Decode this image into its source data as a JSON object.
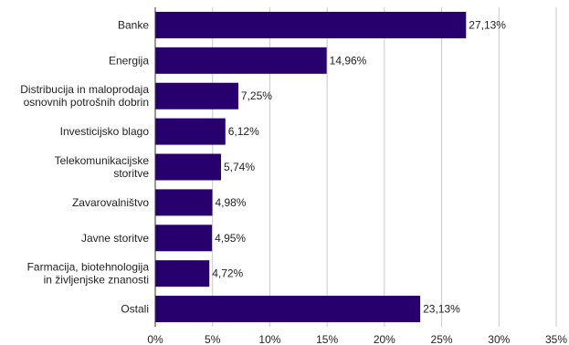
{
  "chart_data": {
    "type": "bar",
    "orientation": "horizontal",
    "title": "",
    "xlabel": "",
    "ylabel": "",
    "categories": [
      [
        "Banke"
      ],
      [
        "Energija"
      ],
      [
        "Distribucija in maloprodaja",
        "osnovnih potrošnih dobrin"
      ],
      [
        "Investicijsko blago"
      ],
      [
        "Telekomunikacijske",
        "storitve"
      ],
      [
        "Zavarovalništvo"
      ],
      [
        "Javne storitve"
      ],
      [
        "Farmacija, biotehnologija",
        "in življenjske znanosti"
      ],
      [
        "Ostali"
      ]
    ],
    "values": [
      27.13,
      14.96,
      7.25,
      6.12,
      5.74,
      4.98,
      4.95,
      4.72,
      23.13
    ],
    "value_labels": [
      "27,13%",
      "14,96%",
      "7,25%",
      "6,12%",
      "5,74%",
      "4,98%",
      "4,95%",
      "4,72%",
      "23,13%"
    ],
    "xlim": [
      0,
      35
    ],
    "xticks": [
      0,
      5,
      10,
      15,
      20,
      25,
      30,
      35
    ],
    "xtick_labels": [
      "0%",
      "5%",
      "10%",
      "15%",
      "20%",
      "25%",
      "30%",
      "35%"
    ],
    "grid": "vertical",
    "legend": "none",
    "bar_color": "#28006e"
  }
}
